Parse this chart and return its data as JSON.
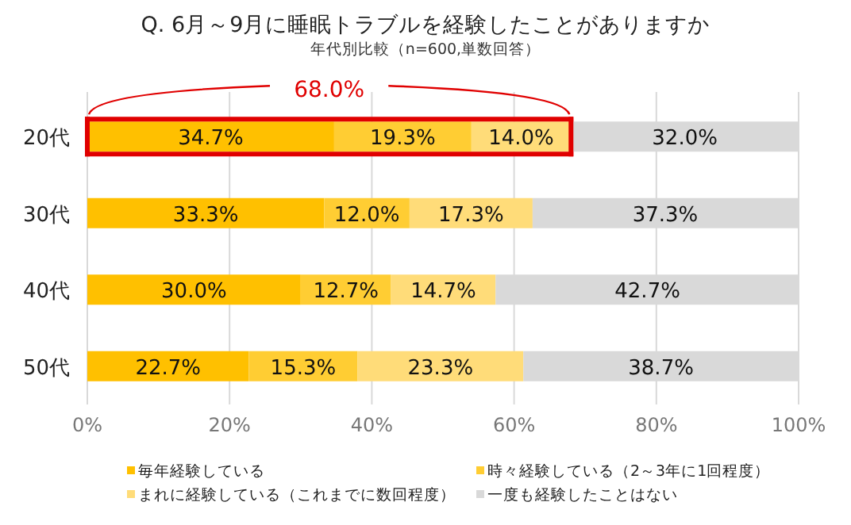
{
  "chart_data": {
    "type": "bar",
    "orientation": "horizontal",
    "stacked": true,
    "title": "Q. 6月～9月に睡眠トラブルを経験したことがありますか",
    "subtitle": "年代別比較（n=600,単数回答）",
    "categories": [
      "20代",
      "30代",
      "40代",
      "50代"
    ],
    "series": [
      {
        "name": "毎年経験している",
        "color": "#ffc000",
        "values": [
          34.7,
          33.3,
          30.0,
          22.7
        ],
        "value_labels": [
          "34.7%",
          "33.3%",
          "30.0%",
          "22.7%"
        ]
      },
      {
        "name": "時々経験している（2～3年に1回程度）",
        "color": "#ffcd33",
        "values": [
          19.3,
          12.0,
          12.7,
          15.3
        ],
        "value_labels": [
          "19.3%",
          "12.0%",
          "12.7%",
          "15.3%"
        ]
      },
      {
        "name": "まれに経験している（これまでに数回程度）",
        "color": "#ffdc79",
        "values": [
          14.0,
          17.3,
          14.7,
          23.3
        ],
        "value_labels": [
          "14.0%",
          "17.3%",
          "14.7%",
          "23.3%"
        ]
      },
      {
        "name": "一度も経験したことはない",
        "color": "#d9d9d9",
        "values": [
          32.0,
          37.3,
          42.7,
          38.7
        ],
        "value_labels": [
          "32.0%",
          "37.3%",
          "42.7%",
          "38.7%"
        ]
      }
    ],
    "xlim": [
      0,
      100
    ],
    "xticks": [
      {
        "value": 0,
        "label": "0%"
      },
      {
        "value": 20,
        "label": "20%"
      },
      {
        "value": 40,
        "label": "40%"
      },
      {
        "value": 60,
        "label": "60%"
      },
      {
        "value": 80,
        "label": "80%"
      },
      {
        "value": 100,
        "label": "100%"
      }
    ],
    "grid": "x",
    "legend": "bottom",
    "annotations": [
      "68.0%"
    ]
  }
}
